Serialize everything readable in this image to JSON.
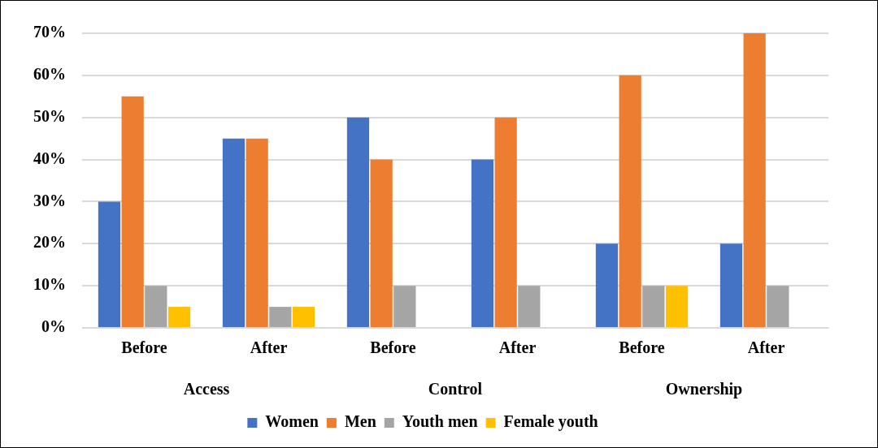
{
  "chart_data": {
    "type": "bar",
    "categories": [
      "Before",
      "After",
      "Before",
      "After",
      "Before",
      "After"
    ],
    "series": [
      {
        "name": "Women",
        "color": "#4472c4",
        "values": [
          30,
          45,
          50,
          40,
          20,
          20
        ]
      },
      {
        "name": "Men",
        "color": "#ed7d31",
        "values": [
          55,
          45,
          40,
          50,
          60,
          70
        ]
      },
      {
        "name": "Youth men",
        "color": "#a5a5a5",
        "values": [
          10,
          5,
          10,
          10,
          10,
          10
        ]
      },
      {
        "name": "Female youth",
        "color": "#ffc000",
        "values": [
          5,
          5,
          0,
          0,
          10,
          0
        ]
      }
    ],
    "annotations": [
      "Access",
      "Control",
      "Ownership"
    ],
    "ylim": [
      0,
      70
    ],
    "yticks": [
      {
        "value": 0,
        "label": "0%"
      },
      {
        "value": 10,
        "label": "10%"
      },
      {
        "value": 20,
        "label": "20%"
      },
      {
        "value": 30,
        "label": "30%"
      },
      {
        "value": 40,
        "label": "40%"
      },
      {
        "value": 50,
        "label": "50%"
      },
      {
        "value": 60,
        "label": "60%"
      },
      {
        "value": 70,
        "label": "70%"
      }
    ],
    "grid": "y",
    "legend": "bottom"
  }
}
